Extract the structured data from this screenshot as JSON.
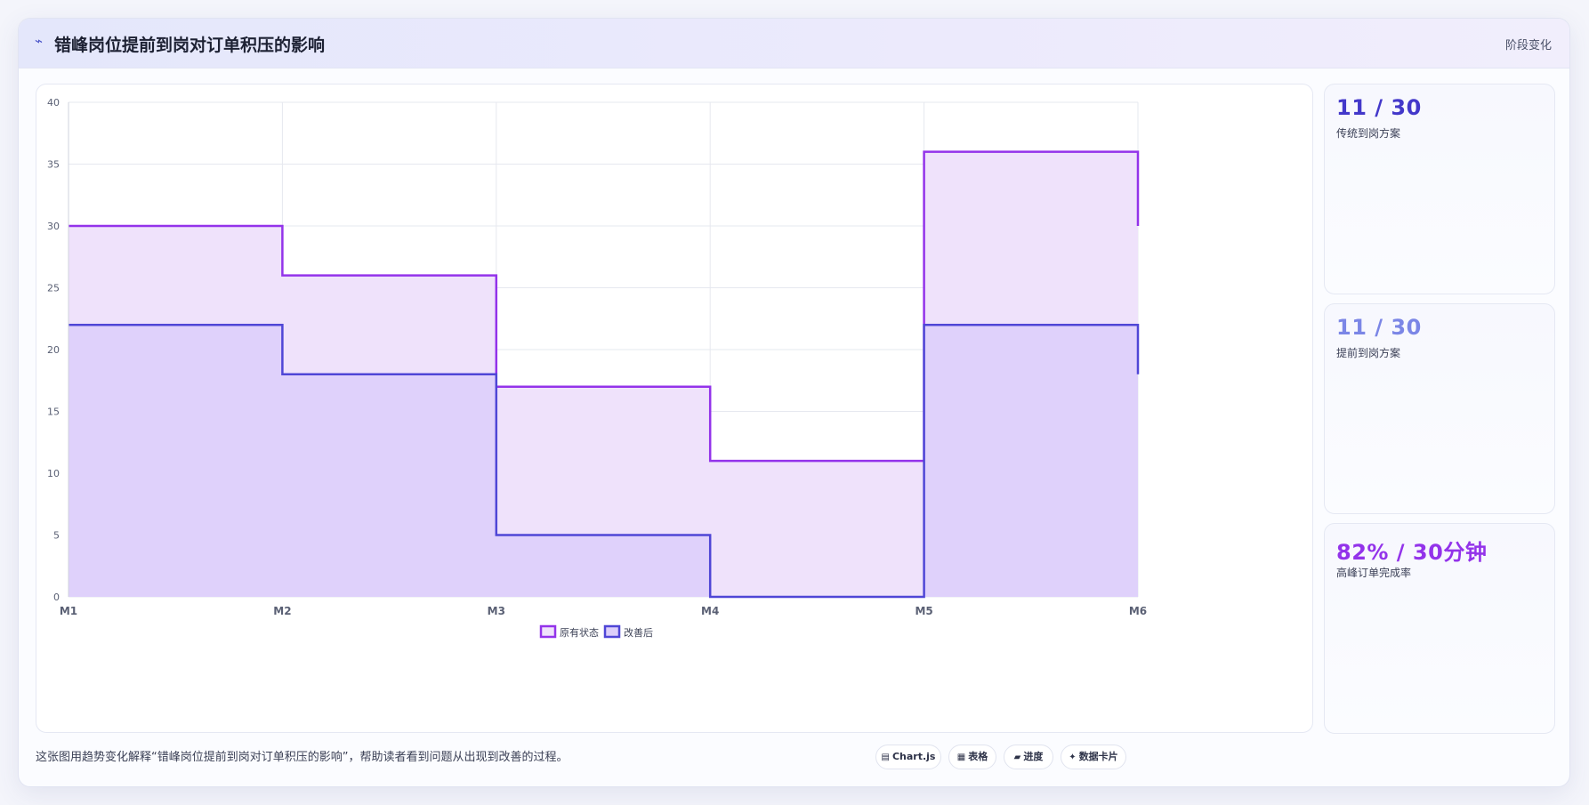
{
  "header": {
    "title_icon": "⌁",
    "title": "错峰岗位提前到岗对订单积压的影响",
    "stage_label": "阶段变化"
  },
  "colors": {
    "original_line": "#9333ea",
    "original_fill": "#efe2fb",
    "improved_line": "#4f46d6",
    "improved_fill": "#dccefa",
    "grid": "#e6e8ef",
    "axis_text": "#5a6074"
  },
  "chart_data": {
    "type": "area",
    "step": true,
    "categories": [
      "M1",
      "M2",
      "M3",
      "M4",
      "M5",
      "M6"
    ],
    "ylim": [
      0,
      40
    ],
    "yticks": [
      0,
      5,
      10,
      15,
      20,
      25,
      30,
      35,
      40
    ],
    "grid": true,
    "legend_position": "bottom",
    "series": [
      {
        "name": "原有状态",
        "values": [
          30,
          26,
          17,
          11,
          36,
          30
        ]
      },
      {
        "name": "改善后",
        "values": [
          22,
          18,
          5,
          0,
          22,
          18
        ]
      }
    ]
  },
  "kpis": [
    {
      "value": "11 / 30",
      "label": "传统到岗方案",
      "color": "#4338ca"
    },
    {
      "value": "11 / 30",
      "label": "提前到岗方案",
      "color": "#7b86e6"
    },
    {
      "value": "82% / 30分钟",
      "label": "高峰订单完成率",
      "color": "#9333ea"
    }
  ],
  "caption": "这张图用趋势变化解释“错峰岗位提前到岗对订单积压的影响”，帮助读者看到问题从出现到改善的过程。",
  "chips": [
    {
      "icon": "▤",
      "label": "Chart.js"
    },
    {
      "icon": "▦",
      "label": "表格"
    },
    {
      "icon": "▰",
      "label": "进度"
    },
    {
      "icon": "✦",
      "label": "数据卡片"
    }
  ]
}
